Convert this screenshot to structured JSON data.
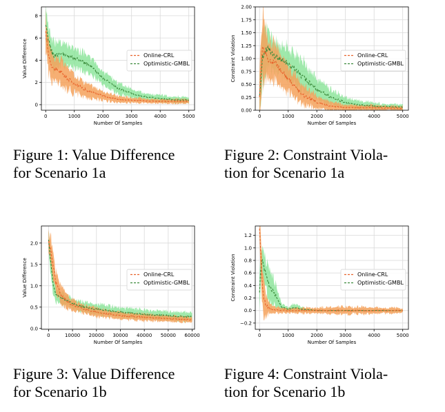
{
  "figures": [
    {
      "caption_line1": "Figure 1: Value Difference",
      "caption_line2": "for Scenario 1a"
    },
    {
      "caption_line1": "Figure 2: Constraint Viola-",
      "caption_line2": "tion for Scenario 1a"
    },
    {
      "caption_line1": "Figure 3: Value Difference",
      "caption_line2": "for Scenario 1b"
    },
    {
      "caption_line1": "Figure 4: Constraint Viola-",
      "caption_line2": "tion for Scenario 1b"
    }
  ],
  "colors": {
    "online": "#e8622a",
    "online_band": "#f5a15a",
    "optimistic": "#3a8a3a",
    "optimistic_band": "#7fe28f"
  },
  "chart_data": [
    {
      "type": "line",
      "xlabel": "Number Of Samples",
      "ylabel": "Value Difference",
      "xlim": [
        -150,
        5200
      ],
      "ylim": [
        -0.5,
        8.8
      ],
      "xticks": [
        0,
        1000,
        2000,
        3000,
        4000,
        5000
      ],
      "xtick_labels": [
        "0",
        "1000",
        "2000",
        "3000",
        "4000",
        "5000"
      ],
      "yticks": [
        0,
        2,
        4,
        6,
        8
      ],
      "ytick_labels": [
        "0",
        "2",
        "4",
        "6",
        "8"
      ],
      "grid": true,
      "legend": "center-right",
      "series": [
        {
          "name": "Online-CRL",
          "x": [
            0,
            100,
            200,
            300,
            500,
            700,
            1000,
            1500,
            2000,
            2500,
            3000,
            3500,
            4000,
            4500,
            5000
          ],
          "y": [
            6.4,
            4.5,
            3.6,
            3.2,
            3.0,
            2.5,
            1.9,
            1.2,
            0.8,
            0.5,
            0.4,
            0.35,
            0.3,
            0.3,
            0.3
          ],
          "band": [
            1.5,
            1.5,
            1.3,
            1.2,
            1.1,
            1.0,
            0.8,
            0.6,
            0.4,
            0.3,
            0.25,
            0.2,
            0.2,
            0.2,
            0.2
          ]
        },
        {
          "name": "Optimistic-GMBL",
          "x": [
            0,
            100,
            200,
            300,
            500,
            700,
            1000,
            1500,
            2000,
            2500,
            3000,
            3500,
            4000,
            4500,
            5000
          ],
          "y": [
            7.0,
            5.8,
            4.8,
            4.4,
            4.6,
            4.4,
            4.2,
            3.6,
            2.4,
            1.5,
            1.0,
            0.7,
            0.55,
            0.45,
            0.4
          ],
          "band": [
            1.4,
            1.3,
            1.3,
            1.2,
            1.0,
            0.9,
            0.9,
            0.8,
            0.6,
            0.5,
            0.4,
            0.3,
            0.3,
            0.3,
            0.25
          ]
        }
      ]
    },
    {
      "type": "line",
      "xlabel": "Number Of Samples",
      "ylabel": "Constraint Violation",
      "xlim": [
        -150,
        5200
      ],
      "ylim": [
        0,
        2.0
      ],
      "xticks": [
        0,
        1000,
        2000,
        3000,
        4000,
        5000
      ],
      "xtick_labels": [
        "0",
        "1000",
        "2000",
        "3000",
        "4000",
        "5000"
      ],
      "yticks": [
        0,
        0.25,
        0.5,
        0.75,
        1.0,
        1.25,
        1.5,
        1.75,
        2.0
      ],
      "ytick_labels": [
        "0.00",
        "0.25",
        "0.50",
        "0.75",
        "1.00",
        "1.25",
        "1.50",
        "1.75",
        "2.00"
      ],
      "grid": true,
      "legend": "center-right",
      "series": [
        {
          "name": "Online-CRL",
          "x": [
            0,
            100,
            200,
            300,
            500,
            700,
            1000,
            1500,
            2000,
            2500,
            3000,
            3500,
            4000,
            4500,
            5000
          ],
          "y": [
            0.3,
            1.3,
            1.1,
            0.95,
            0.95,
            0.8,
            0.6,
            0.3,
            0.15,
            0.08,
            0.05,
            0.05,
            0.05,
            0.04,
            0.04
          ],
          "band": [
            0.4,
            0.7,
            0.5,
            0.4,
            0.35,
            0.3,
            0.25,
            0.2,
            0.12,
            0.08,
            0.05,
            0.05,
            0.05,
            0.04,
            0.04
          ]
        },
        {
          "name": "Optimistic-GMBL",
          "x": [
            0,
            100,
            200,
            300,
            500,
            700,
            1000,
            1500,
            2000,
            2500,
            3000,
            3500,
            4000,
            4500,
            5000
          ],
          "y": [
            0.3,
            1.0,
            1.15,
            1.2,
            1.05,
            1.0,
            0.9,
            0.65,
            0.4,
            0.25,
            0.15,
            0.1,
            0.08,
            0.07,
            0.06
          ],
          "band": [
            0.4,
            0.5,
            0.4,
            0.35,
            0.3,
            0.3,
            0.3,
            0.3,
            0.2,
            0.15,
            0.1,
            0.08,
            0.06,
            0.05,
            0.05
          ]
        }
      ]
    },
    {
      "type": "line",
      "xlabel": "Number Of Samples",
      "ylabel": "Value Difference",
      "xlim": [
        -3000,
        61000
      ],
      "ylim": [
        -0.02,
        2.4
      ],
      "xticks": [
        0,
        10000,
        20000,
        30000,
        40000,
        50000,
        60000
      ],
      "xtick_labels": [
        "0",
        "10000",
        "20000",
        "30000",
        "40000",
        "50000",
        "60000"
      ],
      "yticks": [
        0,
        0.5,
        1.0,
        1.5,
        2.0
      ],
      "ytick_labels": [
        "0.0",
        "0.5",
        "1.0",
        "1.5",
        "2.0"
      ],
      "grid": true,
      "legend": "center-right",
      "series": [
        {
          "name": "Online-CRL",
          "x": [
            0,
            1000,
            2000,
            3000,
            5000,
            8000,
            10000,
            15000,
            20000,
            30000,
            40000,
            50000,
            60000
          ],
          "y": [
            2.05,
            1.8,
            1.45,
            1.1,
            0.8,
            0.62,
            0.55,
            0.45,
            0.38,
            0.3,
            0.26,
            0.23,
            0.2
          ],
          "band": [
            0.25,
            0.3,
            0.3,
            0.25,
            0.2,
            0.15,
            0.12,
            0.1,
            0.1,
            0.08,
            0.08,
            0.07,
            0.06
          ]
        },
        {
          "name": "Optimistic-GMBL",
          "x": [
            0,
            1000,
            2000,
            3000,
            5000,
            8000,
            10000,
            15000,
            20000,
            30000,
            40000,
            50000,
            60000
          ],
          "y": [
            2.05,
            1.5,
            1.0,
            0.8,
            0.72,
            0.65,
            0.58,
            0.5,
            0.45,
            0.38,
            0.33,
            0.3,
            0.27
          ],
          "band": [
            0.2,
            0.3,
            0.25,
            0.18,
            0.15,
            0.13,
            0.12,
            0.12,
            0.12,
            0.11,
            0.1,
            0.1,
            0.1
          ]
        }
      ]
    },
    {
      "type": "line",
      "xlabel": "Number Of Samples",
      "ylabel": "Constraint Violation",
      "xlim": [
        -150,
        5200
      ],
      "ylim": [
        -0.3,
        1.35
      ],
      "xticks": [
        0,
        1000,
        2000,
        3000,
        4000,
        5000
      ],
      "xtick_labels": [
        "0",
        "1000",
        "2000",
        "3000",
        "4000",
        "5000"
      ],
      "yticks": [
        -0.2,
        0,
        0.2,
        0.4,
        0.6,
        0.8,
        1.0,
        1.2
      ],
      "ytick_labels": [
        "−0.2",
        "0.0",
        "0.2",
        "0.4",
        "0.6",
        "0.8",
        "1.0",
        "1.2"
      ],
      "grid": true,
      "legend": "center-right",
      "series": [
        {
          "name": "Online-CRL",
          "x": [
            0,
            30,
            60,
            100,
            150,
            200,
            300,
            500,
            1000,
            2000,
            3000,
            4000,
            5000
          ],
          "y": [
            1.3,
            1.0,
            0.7,
            0.4,
            0.2,
            0.1,
            0.05,
            0.01,
            0.0,
            0.0,
            0.0,
            0.0,
            0.0
          ],
          "band": [
            0.1,
            0.3,
            0.3,
            0.3,
            0.3,
            0.2,
            0.1,
            0.05,
            0.04,
            0.05,
            0.06,
            0.05,
            0.04
          ]
        },
        {
          "name": "Optimistic-GMBL",
          "x": [
            0,
            50,
            100,
            150,
            200,
            300,
            400,
            500,
            600,
            700,
            800,
            1000,
            1200,
            1500,
            2000,
            3000,
            4000,
            5000
          ],
          "y": [
            0.3,
            0.7,
            0.85,
            0.7,
            0.6,
            0.45,
            0.35,
            0.3,
            0.2,
            0.1,
            0.05,
            0.02,
            0.05,
            0.02,
            0.0,
            0.0,
            0.0,
            0.0
          ],
          "band": [
            0.3,
            0.2,
            0.2,
            0.2,
            0.2,
            0.25,
            0.25,
            0.2,
            0.15,
            0.1,
            0.05,
            0.03,
            0.06,
            0.03,
            0.01,
            0.01,
            0.01,
            0.01
          ]
        }
      ]
    }
  ]
}
